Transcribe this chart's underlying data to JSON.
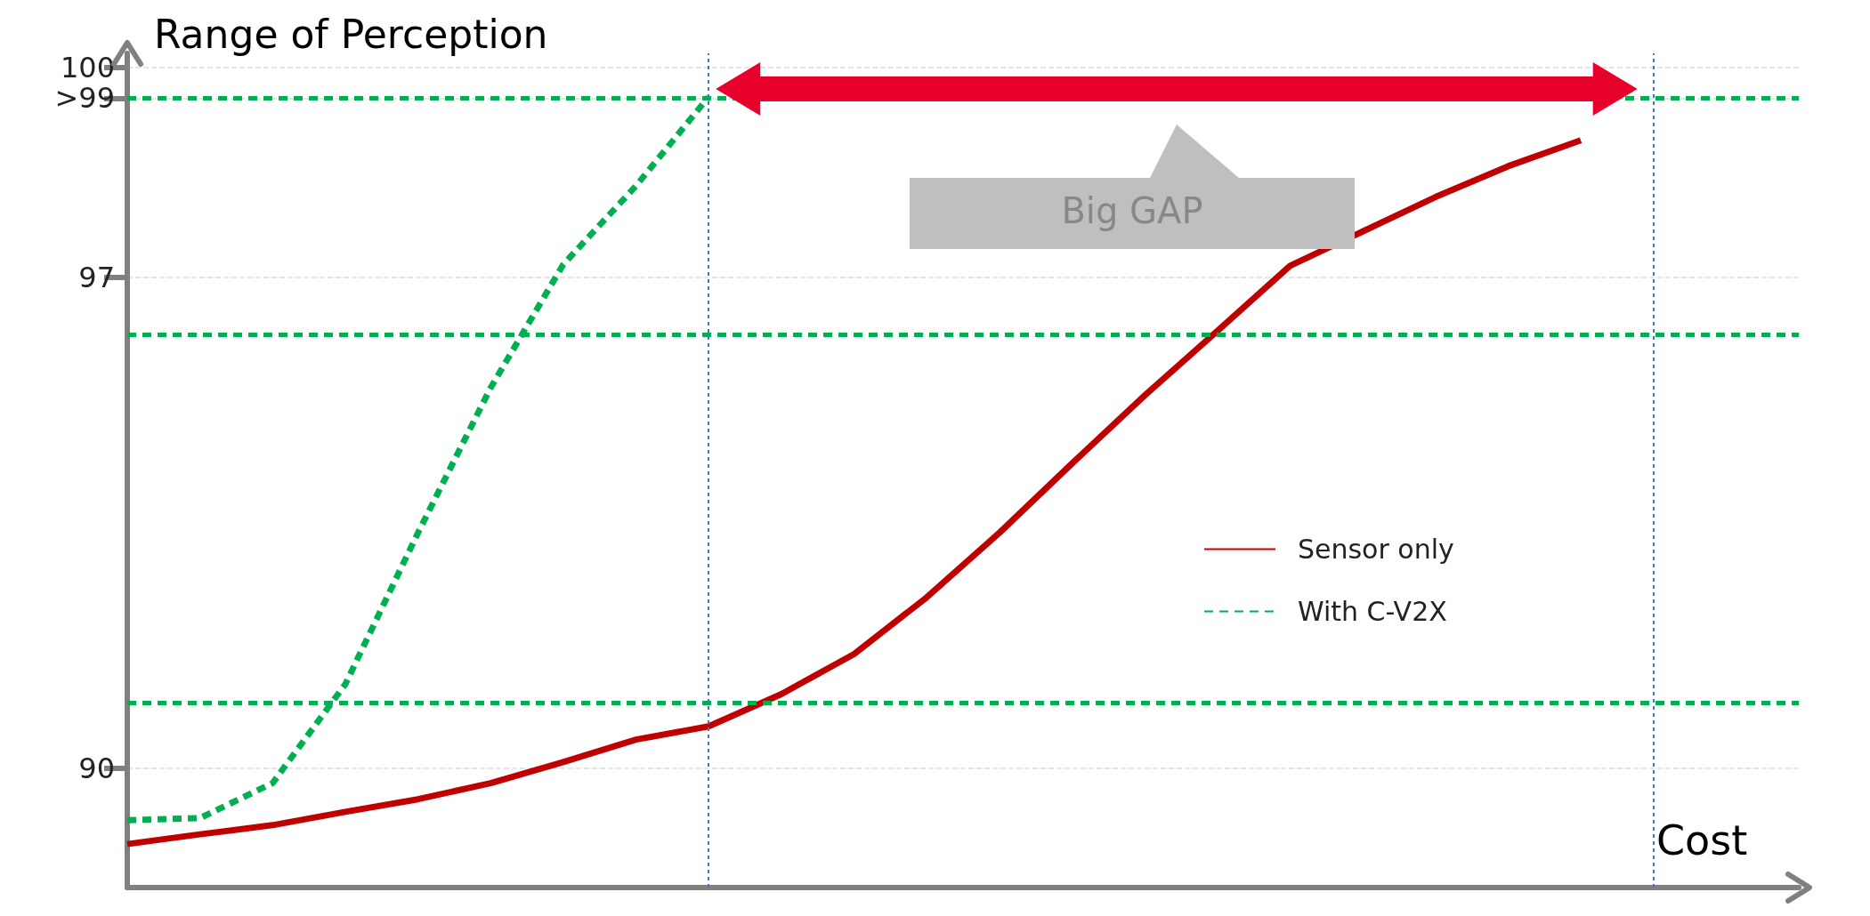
{
  "chart_data": {
    "type": "line",
    "ylabel": "Range of Perception",
    "xlabel": "Cost",
    "categories": [
      null,
      null,
      null,
      null,
      null,
      null,
      null,
      null,
      null,
      null,
      null,
      null,
      null,
      null,
      null,
      null,
      null,
      null,
      null,
      null,
      null,
      null,
      null,
      null
    ],
    "ylim": [
      88.3,
      100.2
    ],
    "yticks": [
      90,
      97,
      {
        "value": 99.56,
        "label": ">99"
      },
      100
    ],
    "grid": "y",
    "legend": "right",
    "marker": "none",
    "series": [
      {
        "name": "Sensor only",
        "color": "#c00000",
        "line_style": "solid",
        "values": [
          88.92,
          89.06,
          89.19,
          89.38,
          89.56,
          89.79,
          90.09,
          90.41,
          90.6,
          91.06,
          91.63,
          92.44,
          93.36,
          94.35,
          95.32,
          96.24,
          97.17,
          97.66,
          98.15,
          98.59,
          98.96,
          null,
          null,
          null
        ]
      },
      {
        "name": "With C-V2X",
        "color": "#00b050",
        "line_style": "dashed",
        "values": [
          89.26,
          89.29,
          89.79,
          91.2,
          93.36,
          95.43,
          97.19,
          98.31,
          99.58,
          null,
          null,
          null,
          null,
          null,
          null,
          null,
          null,
          null,
          null,
          null,
          null,
          null,
          null,
          null
        ]
      }
    ],
    "ref_lines": [
      {
        "axis": "y",
        "value": 99.56,
        "color": "#00b050",
        "line_style": "dashed"
      },
      {
        "axis": "y",
        "value": 96.19,
        "color": "#00b050",
        "line_style": "dashed"
      },
      {
        "axis": "y",
        "value": 90.94,
        "color": "#00b050",
        "line_style": "dashed"
      }
    ],
    "annotations": [
      "Big GAP"
    ]
  }
}
